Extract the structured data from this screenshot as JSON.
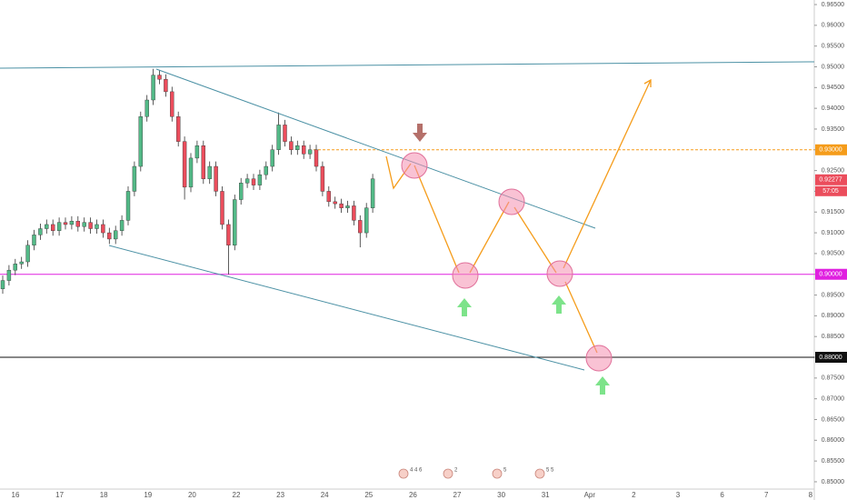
{
  "chart_data": {
    "type": "candlestick",
    "up_color": "#53b987",
    "down_color": "#eb4d5c",
    "open": [
      0.8965,
      0.8985,
      0.901,
      0.9025,
      0.903,
      0.907,
      0.9095,
      0.911,
      0.912,
      0.9105,
      0.9125,
      0.912,
      0.9128,
      0.9115,
      0.9125,
      0.911,
      0.912,
      0.91,
      0.9085,
      0.9105,
      0.913,
      0.92,
      0.926,
      0.938,
      0.942,
      0.948,
      0.947,
      0.944,
      0.938,
      0.932,
      0.921,
      0.928,
      0.931,
      0.923,
      0.926,
      0.92,
      0.912,
      0.907,
      0.918,
      0.922,
      0.923,
      0.9215,
      0.924,
      0.926,
      0.93,
      0.936,
      0.932,
      0.93,
      0.931,
      0.929,
      0.93,
      0.926,
      0.92,
      0.9175,
      0.917,
      0.916,
      0.9165,
      0.913,
      0.91,
      0.916
    ],
    "high": [
      0.8997,
      0.9022,
      0.9037,
      0.9042,
      0.9082,
      0.9107,
      0.9122,
      0.9132,
      0.9132,
      0.9137,
      0.9137,
      0.914,
      0.914,
      0.9137,
      0.9137,
      0.9132,
      0.9132,
      0.9112,
      0.9117,
      0.9142,
      0.9212,
      0.9272,
      0.9392,
      0.9432,
      0.9495,
      0.9492,
      0.9482,
      0.9452,
      0.9392,
      0.9332,
      0.9292,
      0.9322,
      0.9322,
      0.9272,
      0.9272,
      0.9212,
      0.9132,
      0.9192,
      0.9232,
      0.9242,
      0.9242,
      0.9252,
      0.9272,
      0.9312,
      0.939,
      0.9372,
      0.9332,
      0.9322,
      0.9322,
      0.9312,
      0.9312,
      0.9272,
      0.9212,
      0.9187,
      0.9182,
      0.9177,
      0.9177,
      0.9142,
      0.9172,
      0.9242
    ],
    "low": [
      0.8953,
      0.8973,
      0.8998,
      0.9013,
      0.9018,
      0.9058,
      0.9083,
      0.9098,
      0.9093,
      0.9093,
      0.9108,
      0.9108,
      0.9103,
      0.9103,
      0.9098,
      0.9098,
      0.9088,
      0.9073,
      0.9073,
      0.9093,
      0.9118,
      0.9188,
      0.9248,
      0.9368,
      0.9408,
      0.9458,
      0.9428,
      0.9368,
      0.9308,
      0.918,
      0.9198,
      0.9268,
      0.9218,
      0.9218,
      0.9188,
      0.9108,
      0.9,
      0.9058,
      0.9168,
      0.9208,
      0.9203,
      0.9203,
      0.9228,
      0.9248,
      0.9288,
      0.9308,
      0.9288,
      0.9288,
      0.9278,
      0.9278,
      0.9248,
      0.9188,
      0.9163,
      0.9158,
      0.9148,
      0.9148,
      0.9118,
      0.9065,
      0.9088,
      0.9148
    ],
    "close": [
      0.8985,
      0.901,
      0.9025,
      0.903,
      0.907,
      0.9095,
      0.911,
      0.912,
      0.9105,
      0.9125,
      0.912,
      0.9128,
      0.9115,
      0.9125,
      0.911,
      0.912,
      0.91,
      0.9085,
      0.9105,
      0.913,
      0.92,
      0.926,
      0.938,
      0.942,
      0.948,
      0.947,
      0.944,
      0.938,
      0.932,
      0.921,
      0.928,
      0.931,
      0.923,
      0.926,
      0.92,
      0.912,
      0.907,
      0.918,
      0.922,
      0.923,
      0.9215,
      0.924,
      0.926,
      0.93,
      0.936,
      0.932,
      0.93,
      0.931,
      0.929,
      0.93,
      0.926,
      0.92,
      0.9175,
      0.917,
      0.916,
      0.9165,
      0.913,
      0.91,
      0.916,
      0.923
    ],
    "categories": [
      "16",
      "17",
      "18",
      "19",
      "20",
      "22",
      "23",
      "24",
      "25",
      "26",
      "27",
      "30",
      "31",
      "Apr",
      "2",
      "3",
      "6",
      "7",
      "8"
    ],
    "ylim": [
      0.8478,
      0.9661
    ],
    "yticks": [
      {
        "value": 0.965,
        "label": "0.96500"
      },
      {
        "value": 0.96,
        "label": "0.96000"
      },
      {
        "value": 0.955,
        "label": "0.95500"
      },
      {
        "value": 0.95,
        "label": "0.95000"
      },
      {
        "value": 0.945,
        "label": "0.94500"
      },
      {
        "value": 0.94,
        "label": "0.94000"
      },
      {
        "value": 0.935,
        "label": "0.93500"
      },
      {
        "value": 0.93,
        "label": "0.93000"
      },
      {
        "value": 0.925,
        "label": "0.92500"
      },
      {
        "value": 0.92,
        "label": "0.92000"
      },
      {
        "value": 0.915,
        "label": "0.91500"
      },
      {
        "value": 0.91,
        "label": "0.91000"
      },
      {
        "value": 0.905,
        "label": "0.90500"
      },
      {
        "value": 0.9,
        "label": "0.90000"
      },
      {
        "value": 0.895,
        "label": "0.89500"
      },
      {
        "value": 0.89,
        "label": "0.89000"
      },
      {
        "value": 0.885,
        "label": "0.88500"
      },
      {
        "value": 0.88,
        "label": "0.88000"
      },
      {
        "value": 0.875,
        "label": "0.87500"
      },
      {
        "value": 0.87,
        "label": "0.87000"
      },
      {
        "value": 0.865,
        "label": "0.86500"
      },
      {
        "value": 0.86,
        "label": "0.86000"
      },
      {
        "value": 0.855,
        "label": "0.85500"
      },
      {
        "value": 0.85,
        "label": "0.85000"
      }
    ],
    "price_levels": [
      {
        "value": 0.93,
        "label": "0.93000",
        "color": "#f59c1a",
        "style": "dashed"
      },
      {
        "value": 0.9,
        "label": "0.90000",
        "color": "#e020e0",
        "style": "solid"
      },
      {
        "value": 0.88,
        "label": "0.88000",
        "color": "#111111",
        "style": "solid"
      }
    ],
    "last_price": {
      "value": 0.92277,
      "label": "0.92277",
      "color": "#eb4d5c"
    },
    "countdown": "57:05",
    "events": [
      "4 4 6",
      "2",
      "5",
      "5 5"
    ]
  }
}
